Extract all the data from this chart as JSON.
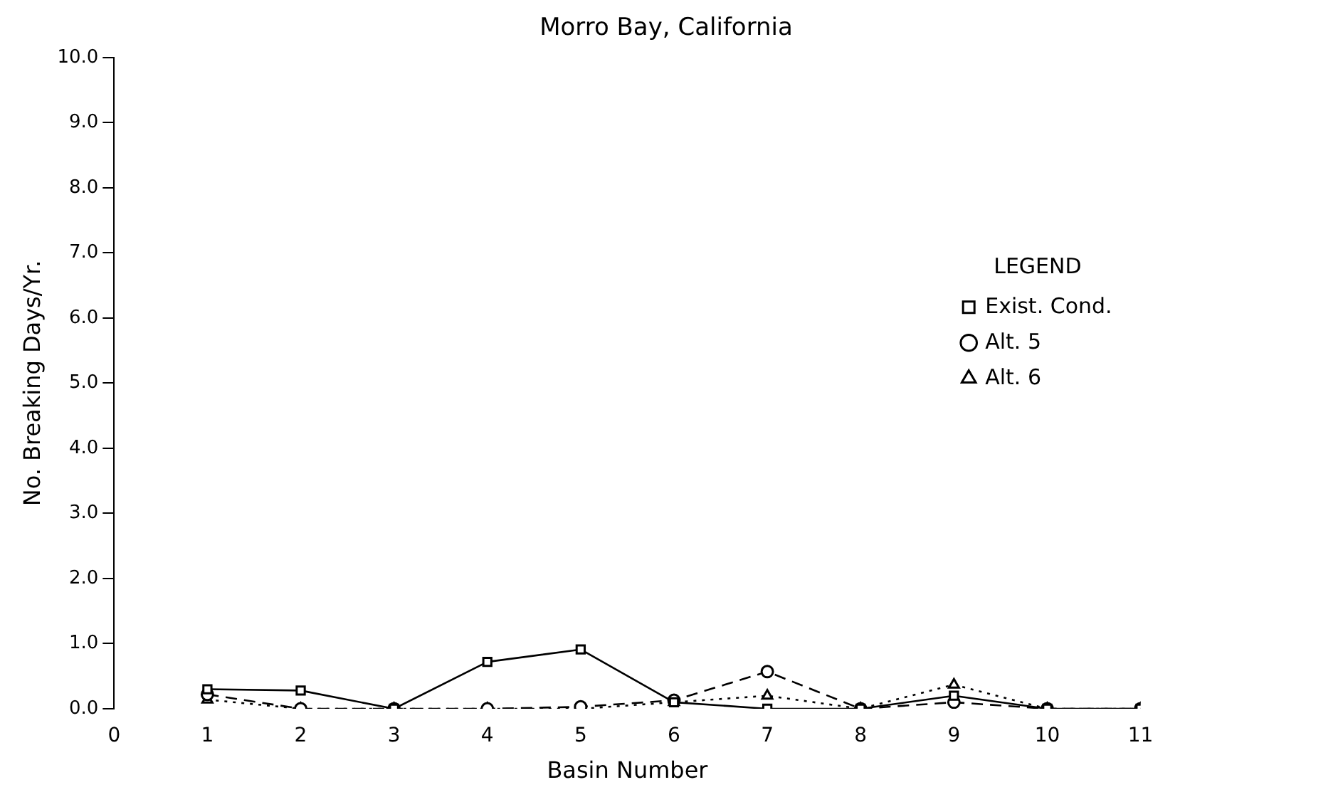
{
  "chart_data": {
    "type": "line",
    "title": "Morro Bay, California",
    "xlabel": "Basin Number",
    "ylabel": "No. Breaking Days/Yr.",
    "legend_title": "LEGEND",
    "legend": "top right",
    "grid": false,
    "xlim": [
      0,
      11
    ],
    "xticks": [
      0,
      1,
      2,
      3,
      4,
      5,
      6,
      7,
      8,
      9,
      10,
      11
    ],
    "ylim": [
      0,
      10
    ],
    "yticks": [
      {
        "value": 0,
        "label": "0.0"
      },
      {
        "value": 1,
        "label": "1.0"
      },
      {
        "value": 2,
        "label": "2.0"
      },
      {
        "value": 3,
        "label": "3.0"
      },
      {
        "value": 4,
        "label": "4.0"
      },
      {
        "value": 5,
        "label": "5.0"
      },
      {
        "value": 6,
        "label": "6.0"
      },
      {
        "value": 7,
        "label": "7.0"
      },
      {
        "value": 8,
        "label": "8.0"
      },
      {
        "value": 9,
        "label": "9.0"
      },
      {
        "value": 10,
        "label": "10.0"
      }
    ],
    "x": [
      1,
      2,
      3,
      4,
      5,
      6,
      7,
      8,
      9,
      10,
      11
    ],
    "series": [
      {
        "name": "Exist. Cond.",
        "color": "#000000",
        "marker": "square",
        "line_style": "solid",
        "values": [
          0.3,
          0.28,
          0,
          0.72,
          0.91,
          0.1,
          0,
          0,
          0.2,
          0,
          0
        ]
      },
      {
        "name": "Alt. 5",
        "color": "#000000",
        "marker": "circle",
        "line_style": "dashed",
        "values": [
          0.22,
          0,
          0,
          0,
          0.03,
          0.13,
          0.57,
          0,
          0.1,
          0,
          0
        ]
      },
      {
        "name": "Alt. 6",
        "color": "#000000",
        "marker": "triangle",
        "line_style": "dotted",
        "values": [
          0.14,
          0,
          0,
          0,
          0,
          0.1,
          0.2,
          0,
          0.37,
          0,
          0
        ]
      }
    ]
  }
}
